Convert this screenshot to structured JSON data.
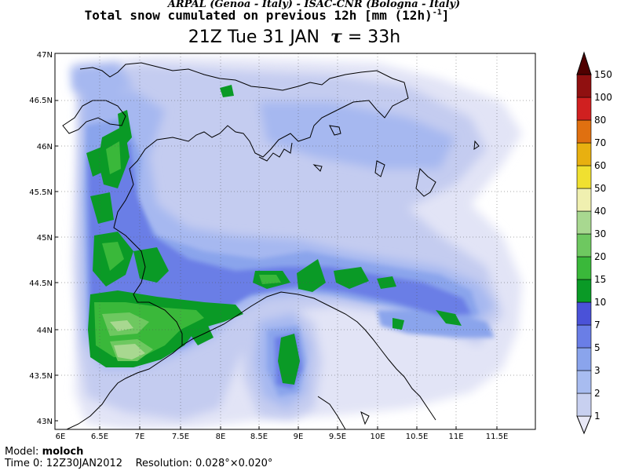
{
  "header": {
    "source_line": "ARPAL (Genoa - Italy)  -  ISAC-CNR (Bologna - Italy)",
    "title_main": "Total snow cumulated on previous 12h [mm (12h)",
    "title_exp": "-1",
    "title_close": "]",
    "valid_time": "21Z Tue 31 JAN",
    "tau_symbol": "τ",
    "tau_value": "= 33h"
  },
  "axes": {
    "lat_labels": [
      "47N",
      "46.5N",
      "46N",
      "45.5N",
      "45N",
      "44.5N",
      "44N",
      "43.5N",
      "43N"
    ],
    "lon_labels": [
      "6E",
      "6.5E",
      "7E",
      "7.5E",
      "8E",
      "8.5E",
      "9E",
      "9.5E",
      "10E",
      "10.5E",
      "11E",
      "11.5E"
    ]
  },
  "colorbar": {
    "levels": [
      "1",
      "2",
      "3",
      "5",
      "7",
      "10",
      "15",
      "20",
      "30",
      "40",
      "50",
      "60",
      "70",
      "80",
      "100",
      "150"
    ],
    "colors": [
      "#e8e8f6",
      "#c8d0f0",
      "#a8bcf0",
      "#8aa4ec",
      "#6a7ee6",
      "#4a52d8",
      "#0a9a26",
      "#3ab83a",
      "#6ec860",
      "#a8d890",
      "#f0f0b0",
      "#f0e030",
      "#e8b010",
      "#e07010",
      "#d02020",
      "#901010",
      "#500000"
    ]
  },
  "footer": {
    "model_label": "Model:",
    "model_value": "moloch",
    "time0_label": "Time 0:",
    "time0_value": "12Z30JAN2012",
    "resolution_label": "Resolution:",
    "resolution_value": "0.028°×0.020°"
  }
}
